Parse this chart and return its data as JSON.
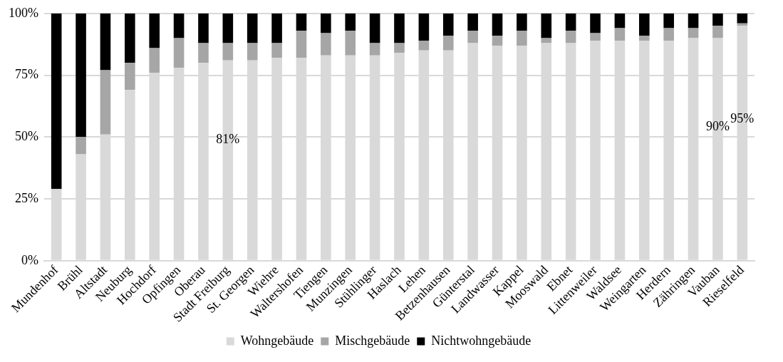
{
  "chart_data": {
    "type": "bar",
    "stacked": true,
    "categories": [
      "Mundenhof",
      "Brühl",
      "Altstadt",
      "Neuburg",
      "Hochdorf",
      "Opfingen",
      "Oberau",
      "Stadt Freiburg",
      "St. Georgen",
      "Wiehre",
      "Waltershofen",
      "Tiengen",
      "Munzingen",
      "Stühlinger",
      "Haslach",
      "Lehen",
      "Betzenhausen",
      "Günterstal",
      "Landwasser",
      "Kappel",
      "Mooswald",
      "Ebnet",
      "Littenweiler",
      "Waldsee",
      "Weingarten",
      "Herdern",
      "Zähringen",
      "Vauban",
      "Rieselfeld"
    ],
    "series": [
      {
        "name": "Wohngebäude",
        "color": "#d9d9d9",
        "values": [
          29,
          43,
          51,
          69,
          76,
          78,
          80,
          81,
          81,
          82,
          82,
          83,
          83,
          83,
          84,
          85,
          85,
          88,
          87,
          87,
          88,
          88,
          89,
          89,
          89,
          89,
          90,
          90,
          95
        ],
        "value_labels": [
          null,
          null,
          null,
          null,
          null,
          null,
          null,
          "81%",
          null,
          null,
          null,
          null,
          null,
          null,
          null,
          null,
          null,
          null,
          null,
          null,
          null,
          null,
          null,
          null,
          null,
          null,
          null,
          "90%",
          "95%"
        ]
      },
      {
        "name": "Mischgebäude",
        "color": "#a6a6a6",
        "values": [
          0,
          7,
          26,
          11,
          10,
          12,
          8,
          7,
          7,
          6,
          11,
          9,
          10,
          5,
          4,
          4,
          6,
          5,
          4,
          6,
          2,
          5,
          3,
          5,
          2,
          5,
          4,
          5,
          1
        ]
      },
      {
        "name": "Nichtwohngebäude",
        "color": "#000000",
        "values": [
          71,
          50,
          23,
          20,
          14,
          10,
          12,
          12,
          12,
          12,
          7,
          8,
          7,
          12,
          12,
          11,
          9,
          7,
          9,
          7,
          10,
          7,
          8,
          6,
          9,
          6,
          6,
          5,
          4
        ]
      }
    ],
    "ylim": [
      0,
      100
    ],
    "yticks": [
      {
        "value": 0,
        "label": "0%"
      },
      {
        "value": 25,
        "label": "25%"
      },
      {
        "value": 50,
        "label": "50%"
      },
      {
        "value": 75,
        "label": "75%"
      },
      {
        "value": 100,
        "label": "100%"
      }
    ],
    "grid": "y",
    "legend": "bottom"
  }
}
